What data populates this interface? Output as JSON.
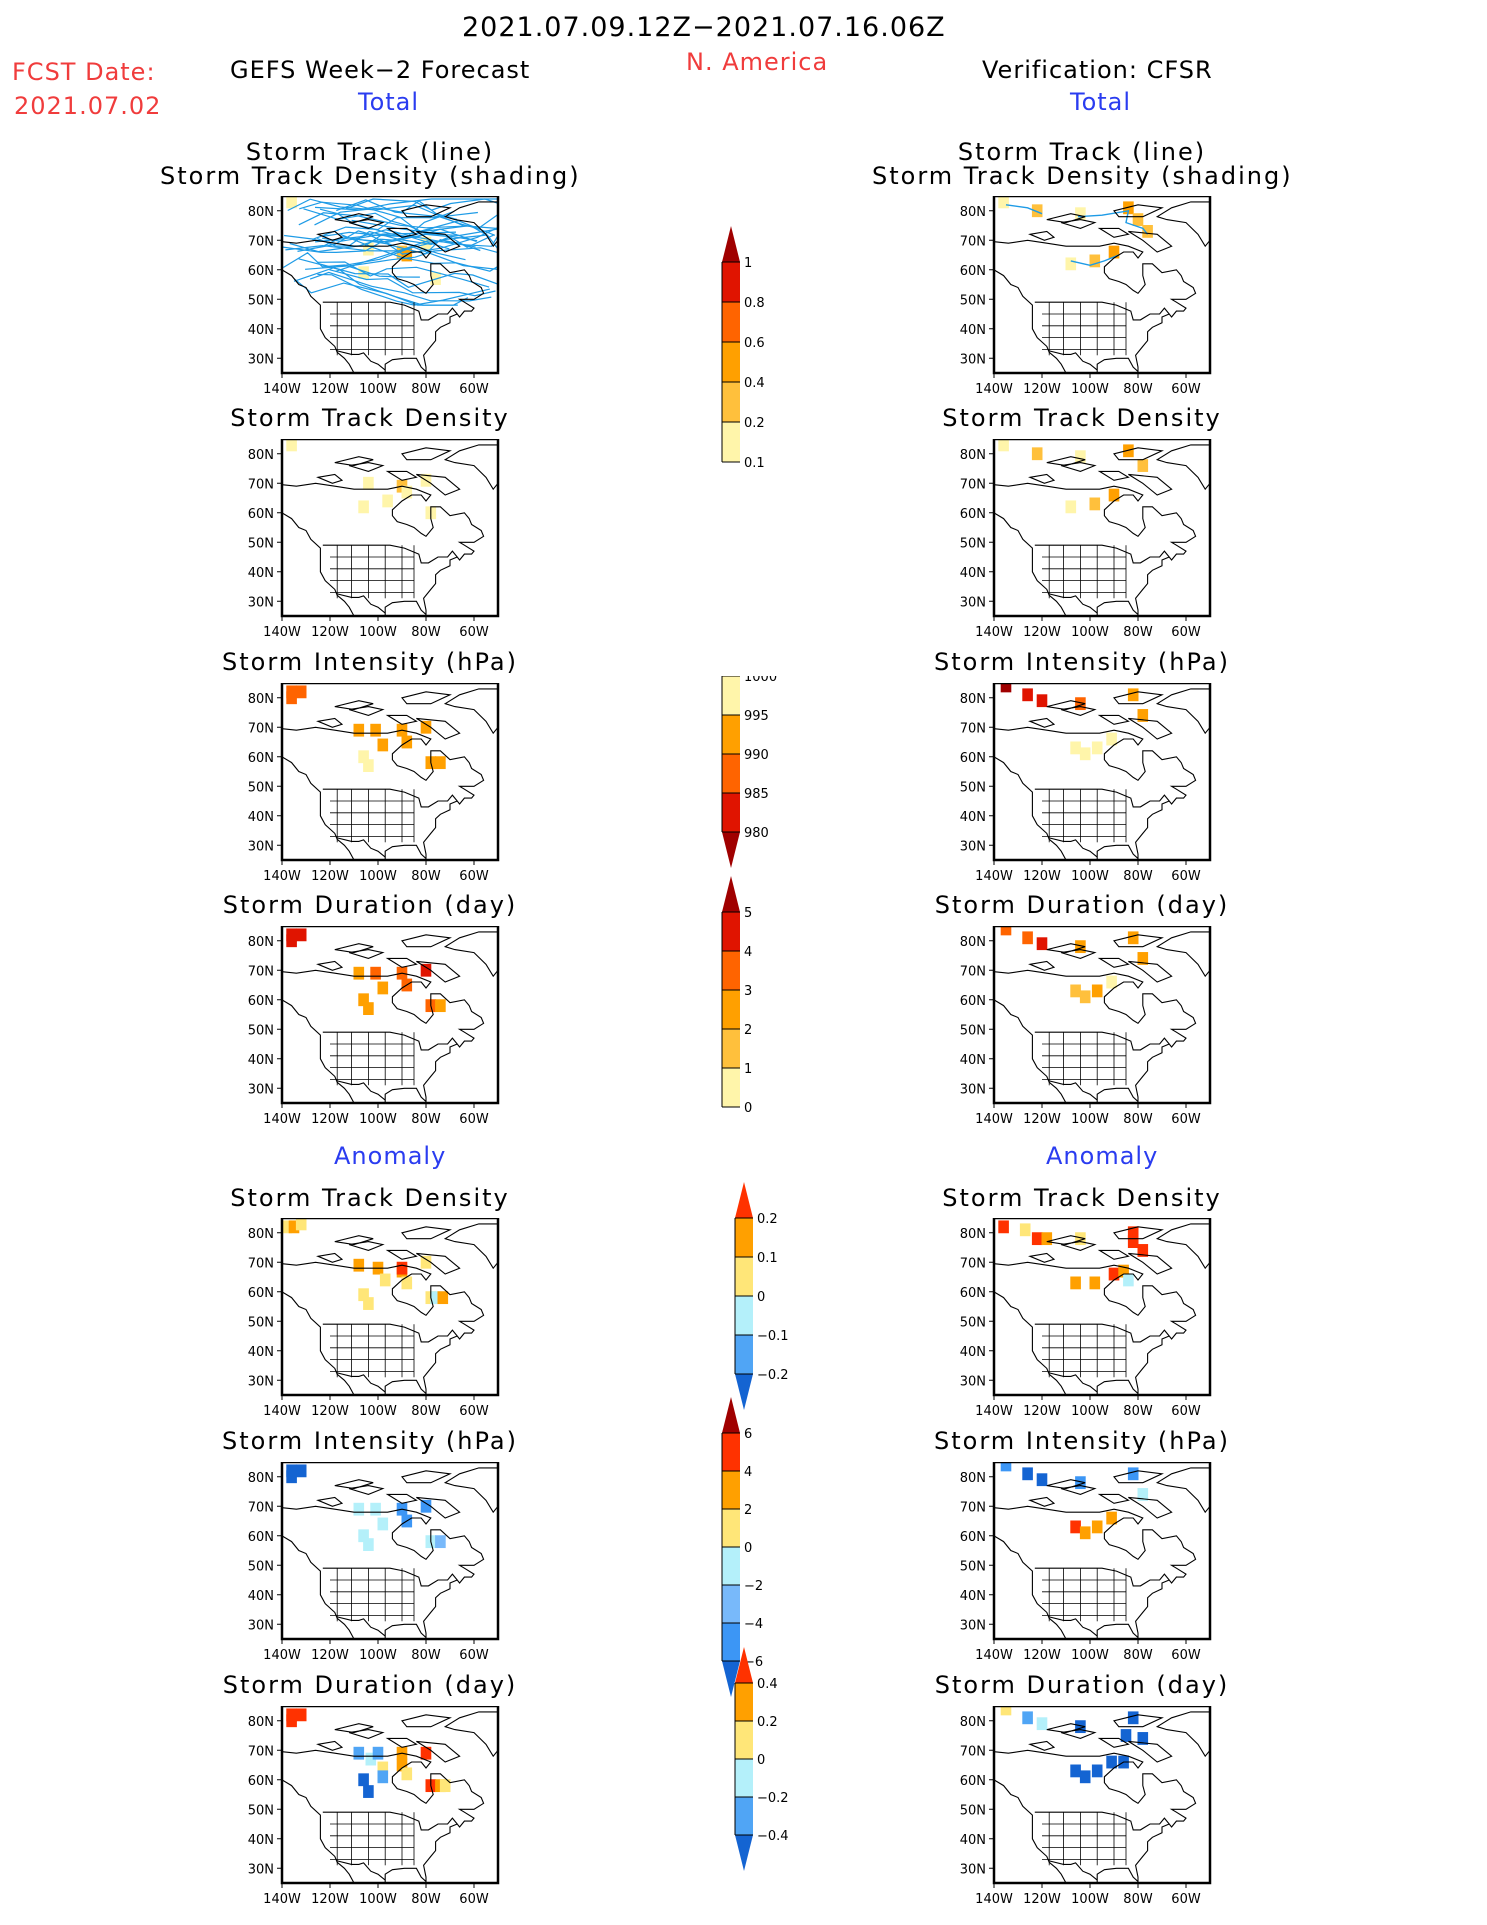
{
  "header": {
    "period": "2021.07.09.12Z−2021.07.16.06Z",
    "region": "N. America",
    "fcst_label": "FCST Date:",
    "fcst_date": "2021.07.02",
    "left_title": "GEFS Week−2 Forecast",
    "right_title": "Verification: CFSR",
    "total_label": "Total",
    "anomaly_label": "Anomaly"
  },
  "axes": {
    "lat_ticks": [
      "80N",
      "70N",
      "60N",
      "50N",
      "40N",
      "30N"
    ],
    "lat_values": [
      80,
      70,
      60,
      50,
      40,
      30
    ],
    "lon_ticks": [
      "140W",
      "120W",
      "100W",
      "80W",
      "60W"
    ],
    "lon_values": [
      -140,
      -120,
      -100,
      -80,
      -60
    ],
    "lon_range": [
      -140,
      -50
    ],
    "lat_range": [
      25,
      85
    ]
  },
  "colorbars": [
    {
      "name": "density-total",
      "labels": [
        "1",
        "0.8",
        "0.6",
        "0.4",
        "0.2",
        "0.1"
      ],
      "colors": [
        "#a00000",
        "#e01400",
        "#ff6400",
        "#ffa000",
        "#ffc03c",
        "#fff5aa"
      ],
      "triangle": "top"
    },
    {
      "name": "intensity-total",
      "labels": [
        "1000",
        "995",
        "990",
        "985",
        "980"
      ],
      "colors": [
        "#fff5aa",
        "#ffa000",
        "#ff6400",
        "#e01400",
        "#a00000"
      ],
      "triangle": "bottom"
    },
    {
      "name": "duration-total",
      "labels": [
        "5",
        "4",
        "3",
        "2",
        "1",
        "0"
      ],
      "colors": [
        "#a00000",
        "#e01400",
        "#ff6400",
        "#ffa000",
        "#ffc03c",
        "#fff5aa"
      ],
      "triangle": "top"
    },
    {
      "name": "density-anomaly",
      "labels": [
        "0.2",
        "0.1",
        "0",
        "−0.1",
        "−0.2"
      ],
      "colors": [
        "#ff3200",
        "#ffa000",
        "#ffe678",
        "#b4f0fa",
        "#50a5f5",
        "#1464d2"
      ],
      "triangle": "both"
    },
    {
      "name": "intensity-anomaly",
      "labels": [
        "6",
        "4",
        "2",
        "0",
        "−2",
        "−4",
        "−6"
      ],
      "colors": [
        "#a00000",
        "#ff3200",
        "#ffa000",
        "#ffe678",
        "#b4f0fa",
        "#78b9fa",
        "#3c96f5",
        "#1464d2"
      ],
      "triangle": "both"
    },
    {
      "name": "duration-anomaly",
      "labels": [
        "0.4",
        "0.2",
        "0",
        "−0.2",
        "−0.4"
      ],
      "colors": [
        "#ff3200",
        "#ffa000",
        "#ffe678",
        "#b4f0fa",
        "#50a5f5",
        "#1464d2"
      ],
      "triangle": "both"
    }
  ],
  "panels": [
    {
      "id": "L1",
      "title": [
        "Storm Track (line)",
        "Storm Track Density (shading)"
      ],
      "cells": [
        [
          -136,
          83,
          "#fff5aa"
        ],
        [
          -104,
          67,
          "#fff5aa"
        ],
        [
          -90,
          66,
          "#ffc03c"
        ],
        [
          -88,
          65,
          "#ffa000"
        ],
        [
          -106,
          59,
          "#fff5aa"
        ],
        [
          -80,
          69,
          "#fff5aa"
        ],
        [
          -76,
          57,
          "#fff5aa"
        ]
      ],
      "tracks": "many"
    },
    {
      "id": "R1",
      "title": [
        "Storm Track (line)",
        "Storm Track Density (shading)"
      ],
      "cells": [
        [
          -136,
          83,
          "#fff5aa"
        ],
        [
          -122,
          80,
          "#ffc03c"
        ],
        [
          -104,
          79,
          "#fff5aa"
        ],
        [
          -84,
          81,
          "#ffa000"
        ],
        [
          -80,
          77,
          "#ffc03c"
        ],
        [
          -76,
          73,
          "#ffc03c"
        ],
        [
          -108,
          62,
          "#fff5aa"
        ],
        [
          -98,
          63,
          "#ffc03c"
        ],
        [
          -90,
          66,
          "#ffa000"
        ]
      ],
      "tracks": "few"
    },
    {
      "id": "L2",
      "title": [
        "Storm Track Density"
      ],
      "cells": [
        [
          -136,
          83,
          "#fff5aa"
        ],
        [
          -104,
          70,
          "#fff5aa"
        ],
        [
          -90,
          69,
          "#ffc03c"
        ],
        [
          -88,
          67,
          "#fff5aa"
        ],
        [
          -80,
          71,
          "#fff5aa"
        ],
        [
          -106,
          62,
          "#fff5aa"
        ],
        [
          -96,
          64,
          "#fff5aa"
        ],
        [
          -78,
          60,
          "#fff5aa"
        ]
      ]
    },
    {
      "id": "R2",
      "title": [
        "Storm Track Density"
      ],
      "cells": [
        [
          -136,
          83,
          "#fff5aa"
        ],
        [
          -122,
          80,
          "#ffc03c"
        ],
        [
          -104,
          79,
          "#fff5aa"
        ],
        [
          -84,
          81,
          "#ffa000"
        ],
        [
          -78,
          76,
          "#ffc03c"
        ],
        [
          -108,
          62,
          "#fff5aa"
        ],
        [
          -98,
          63,
          "#ffc03c"
        ],
        [
          -90,
          66,
          "#ffa000"
        ]
      ]
    },
    {
      "id": "L3",
      "title": [
        "Storm Intensity (hPa)"
      ],
      "cells": [
        [
          -136,
          82,
          "#ff6400"
        ],
        [
          -132,
          82,
          "#ff6400"
        ],
        [
          -136,
          80,
          "#ff6400"
        ],
        [
          -108,
          69,
          "#ffa000"
        ],
        [
          -101,
          69,
          "#ffa000"
        ],
        [
          -98,
          64,
          "#ffa000"
        ],
        [
          -90,
          69,
          "#ffa000"
        ],
        [
          -88,
          65,
          "#ffa000"
        ],
        [
          -80,
          70,
          "#ffa000"
        ],
        [
          -106,
          60,
          "#fff5aa"
        ],
        [
          -104,
          57,
          "#fff5aa"
        ],
        [
          -78,
          58,
          "#ffa000"
        ],
        [
          -74,
          58,
          "#ffa000"
        ]
      ]
    },
    {
      "id": "R3",
      "title": [
        "Storm Intensity (hPa)"
      ],
      "cells": [
        [
          -135,
          84,
          "#a00000"
        ],
        [
          -126,
          81,
          "#e01400"
        ],
        [
          -120,
          79,
          "#e01400"
        ],
        [
          -104,
          78,
          "#ff6400"
        ],
        [
          -82,
          81,
          "#ffa000"
        ],
        [
          -78,
          74,
          "#ffa000"
        ],
        [
          -106,
          63,
          "#fff5aa"
        ],
        [
          -102,
          61,
          "#fff5aa"
        ],
        [
          -97,
          63,
          "#fff5aa"
        ],
        [
          -91,
          66,
          "#fff5aa"
        ]
      ]
    },
    {
      "id": "L4",
      "title": [
        "Storm Duration (day)"
      ],
      "cells": [
        [
          -136,
          82,
          "#e01400"
        ],
        [
          -132,
          82,
          "#e01400"
        ],
        [
          -136,
          80,
          "#e01400"
        ],
        [
          -108,
          69,
          "#ffa000"
        ],
        [
          -101,
          69,
          "#ff6400"
        ],
        [
          -98,
          64,
          "#ffa000"
        ],
        [
          -90,
          69,
          "#ff6400"
        ],
        [
          -88,
          65,
          "#ff6400"
        ],
        [
          -80,
          70,
          "#e01400"
        ],
        [
          -106,
          60,
          "#ffa000"
        ],
        [
          -104,
          57,
          "#ffa000"
        ],
        [
          -78,
          58,
          "#ff6400"
        ],
        [
          -74,
          58,
          "#ffa000"
        ]
      ]
    },
    {
      "id": "R4",
      "title": [
        "Storm Duration (day)"
      ],
      "cells": [
        [
          -135,
          84,
          "#ff6400"
        ],
        [
          -126,
          81,
          "#ff6400"
        ],
        [
          -120,
          79,
          "#e01400"
        ],
        [
          -104,
          78,
          "#ffa000"
        ],
        [
          -82,
          81,
          "#ffa000"
        ],
        [
          -78,
          74,
          "#ffa000"
        ],
        [
          -106,
          63,
          "#ffc03c"
        ],
        [
          -102,
          61,
          "#ffc03c"
        ],
        [
          -97,
          63,
          "#ffa000"
        ],
        [
          -91,
          66,
          "#fff5aa"
        ]
      ]
    },
    {
      "id": "L5",
      "title": [
        "Storm Track Density"
      ],
      "cells": [
        [
          -138,
          82,
          "#ffe678"
        ],
        [
          -135,
          82,
          "#ffa000"
        ],
        [
          -132,
          83,
          "#ffe678"
        ],
        [
          -108,
          69,
          "#ffa000"
        ],
        [
          -100,
          68,
          "#ffa000"
        ],
        [
          -97,
          64,
          "#ffe678"
        ],
        [
          -90,
          67,
          "#ffa000"
        ],
        [
          -90,
          68,
          "#ff3200"
        ],
        [
          -88,
          63,
          "#ffe678"
        ],
        [
          -80,
          70,
          "#ffe678"
        ],
        [
          -106,
          59,
          "#ffe678"
        ],
        [
          -104,
          56,
          "#ffe678"
        ],
        [
          -78,
          58,
          "#ffe678"
        ],
        [
          -76,
          58,
          "#b4f0fa"
        ],
        [
          -73,
          58,
          "#ffa000"
        ]
      ]
    },
    {
      "id": "R5",
      "title": [
        "Storm Track Density"
      ],
      "cells": [
        [
          -136,
          82,
          "#ff3200"
        ],
        [
          -127,
          81,
          "#ffe678"
        ],
        [
          -122,
          78,
          "#ff3200"
        ],
        [
          -118,
          78,
          "#ffa000"
        ],
        [
          -104,
          78,
          "#ffe678"
        ],
        [
          -82,
          80,
          "#ff3200"
        ],
        [
          -82,
          77,
          "#ff3200"
        ],
        [
          -78,
          74,
          "#ff3200"
        ],
        [
          -106,
          63,
          "#ffa000"
        ],
        [
          -98,
          63,
          "#ffa000"
        ],
        [
          -90,
          66,
          "#ff3200"
        ],
        [
          -86,
          67,
          "#ffa000"
        ],
        [
          -84,
          64,
          "#b4f0fa"
        ]
      ]
    },
    {
      "id": "L6",
      "title": [
        "Storm Intensity (hPa)"
      ],
      "cells": [
        [
          -136,
          82,
          "#1464d2"
        ],
        [
          -132,
          82,
          "#1464d2"
        ],
        [
          -136,
          80,
          "#1464d2"
        ],
        [
          -108,
          69,
          "#b4f0fa"
        ],
        [
          -101,
          69,
          "#b4f0fa"
        ],
        [
          -98,
          64,
          "#b4f0fa"
        ],
        [
          -90,
          69,
          "#3c96f5"
        ],
        [
          -88,
          65,
          "#3c96f5"
        ],
        [
          -80,
          70,
          "#3c96f5"
        ],
        [
          -106,
          60,
          "#b4f0fa"
        ],
        [
          -104,
          57,
          "#b4f0fa"
        ],
        [
          -78,
          58,
          "#b4f0fa"
        ],
        [
          -74,
          58,
          "#78b9fa"
        ]
      ]
    },
    {
      "id": "R6",
      "title": [
        "Storm Intensity (hPa)"
      ],
      "cells": [
        [
          -135,
          84,
          "#3c96f5"
        ],
        [
          -126,
          81,
          "#1464d2"
        ],
        [
          -120,
          79,
          "#1464d2"
        ],
        [
          -104,
          78,
          "#3c96f5"
        ],
        [
          -82,
          81,
          "#3c96f5"
        ],
        [
          -78,
          74,
          "#b4f0fa"
        ],
        [
          -106,
          63,
          "#ff3200"
        ],
        [
          -102,
          61,
          "#ffa000"
        ],
        [
          -97,
          63,
          "#ffa000"
        ],
        [
          -91,
          66,
          "#ffa000"
        ]
      ]
    },
    {
      "id": "L7",
      "title": [
        "Storm Duration (day)"
      ],
      "cells": [
        [
          -136,
          82,
          "#ff3200"
        ],
        [
          -132,
          82,
          "#ff3200"
        ],
        [
          -136,
          80,
          "#ff3200"
        ],
        [
          -108,
          69,
          "#50a5f5"
        ],
        [
          -103,
          67,
          "#b4f0fa"
        ],
        [
          -100,
          69,
          "#50a5f5"
        ],
        [
          -98,
          64,
          "#ffe678"
        ],
        [
          -98,
          61,
          "#50a5f5"
        ],
        [
          -90,
          69,
          "#ffa000"
        ],
        [
          -90,
          65,
          "#ffa000"
        ],
        [
          -88,
          62,
          "#ffe678"
        ],
        [
          -80,
          69,
          "#ff3200"
        ],
        [
          -106,
          60,
          "#1464d2"
        ],
        [
          -104,
          56,
          "#1464d2"
        ],
        [
          -78,
          58,
          "#ff3200"
        ],
        [
          -74,
          58,
          "#ffa000"
        ],
        [
          -72,
          58,
          "#ffe678"
        ]
      ]
    },
    {
      "id": "R7",
      "title": [
        "Storm Duration (day)"
      ],
      "cells": [
        [
          -135,
          84,
          "#ffe678"
        ],
        [
          -126,
          81,
          "#50a5f5"
        ],
        [
          -120,
          79,
          "#b4f0fa"
        ],
        [
          -104,
          78,
          "#1464d2"
        ],
        [
          -82,
          81,
          "#1464d2"
        ],
        [
          -85,
          75,
          "#1464d2"
        ],
        [
          -78,
          74,
          "#1464d2"
        ],
        [
          -106,
          63,
          "#1464d2"
        ],
        [
          -102,
          61,
          "#1464d2"
        ],
        [
          -97,
          63,
          "#1464d2"
        ],
        [
          -91,
          66,
          "#1464d2"
        ],
        [
          -86,
          66,
          "#1464d2"
        ]
      ]
    }
  ]
}
